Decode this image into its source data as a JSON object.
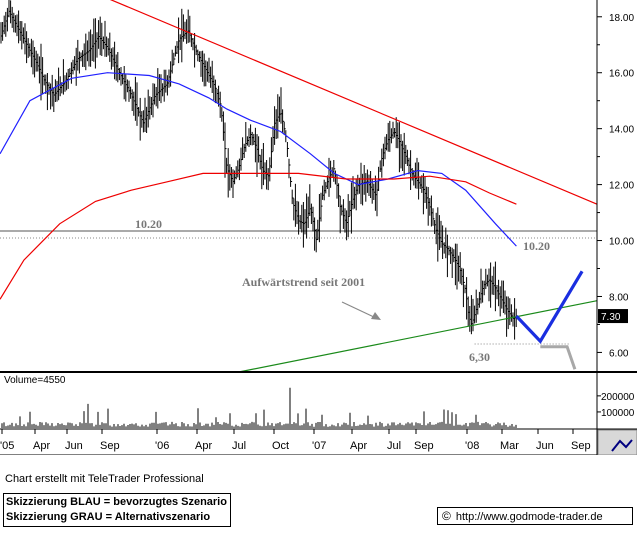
{
  "chart_data": {
    "type": "candlestick",
    "price_axis": {
      "ticks": [
        6,
        8,
        10,
        12,
        14,
        16,
        18
      ],
      "tick_labels": [
        "6.00",
        "8.00",
        "10.00",
        "12.00",
        "14.00",
        "16.00",
        "18.00"
      ],
      "range": [
        5.3,
        18.6
      ]
    },
    "volume_axis": {
      "ticks": [
        100000,
        200000
      ],
      "tick_labels": [
        "100000",
        "200000"
      ],
      "label": "Volume=4550"
    },
    "time_axis": [
      "'05",
      "Apr",
      "Jun",
      "Sep",
      "'06",
      "Apr",
      "Jul",
      "Oct",
      "'07",
      "Apr",
      "Jul",
      "Sep",
      "'08",
      "Mar",
      "Jun",
      "Sep"
    ],
    "last_price": "7.30",
    "moving_averages": [
      {
        "color": "#2020ff",
        "points": [
          [
            0,
            13.1
          ],
          [
            0.05,
            15.0
          ],
          [
            0.12,
            15.8
          ],
          [
            0.18,
            16.0
          ],
          [
            0.25,
            15.9
          ],
          [
            0.3,
            15.6
          ],
          [
            0.35,
            15.1
          ],
          [
            0.38,
            14.7
          ],
          [
            0.42,
            14.3
          ],
          [
            0.47,
            13.9
          ],
          [
            0.52,
            13.1
          ],
          [
            0.56,
            12.4
          ],
          [
            0.6,
            12.0
          ],
          [
            0.65,
            12.2
          ],
          [
            0.7,
            12.5
          ],
          [
            0.74,
            12.4
          ],
          [
            0.78,
            11.8
          ],
          [
            0.83,
            10.6
          ],
          [
            0.865,
            9.8
          ]
        ]
      },
      {
        "color": "#ee0000",
        "points": [
          [
            0,
            7.9
          ],
          [
            0.04,
            9.3
          ],
          [
            0.1,
            10.6
          ],
          [
            0.16,
            11.4
          ],
          [
            0.22,
            11.8
          ],
          [
            0.28,
            12.1
          ],
          [
            0.34,
            12.4
          ],
          [
            0.4,
            12.4
          ],
          [
            0.5,
            12.4
          ],
          [
            0.58,
            12.2
          ],
          [
            0.66,
            12.2
          ],
          [
            0.72,
            12.3
          ],
          [
            0.78,
            12.1
          ],
          [
            0.82,
            11.7
          ],
          [
            0.865,
            11.3
          ]
        ]
      }
    ],
    "annotations": {
      "resistance_level": "10.20",
      "support_level": "6,30",
      "uptrend_label": "Aufwärtstrend seit 2001"
    },
    "scenario_blue": [
      [
        0.865,
        7.3
      ],
      [
        0.905,
        6.4
      ],
      [
        0.975,
        8.9
      ]
    ],
    "scenario_grey": [
      [
        0.905,
        6.2
      ],
      [
        0.95,
        6.2
      ],
      [
        0.963,
        5.4
      ]
    ],
    "levels": [
      {
        "value": 10.2,
        "label": "10.20"
      },
      {
        "value": 6.3,
        "label": "6,30"
      }
    ],
    "trendlines": [
      {
        "name": "downtrend",
        "color": "#ee0000",
        "from": [
          0.17,
          18.75
        ],
        "to": [
          1.0,
          11.3
        ]
      },
      {
        "name": "uptrend",
        "color": "#1a8a1a",
        "from": [
          0.4,
          5.3
        ],
        "to": [
          1.0,
          7.85
        ]
      }
    ]
  },
  "footer": {
    "credit": "Chart erstellt mit TeleTrader Professional",
    "legend_blue": "Skizzierung BLAU = bevorzugtes Szenario",
    "legend_grey": "Skizzierung GRAU = Alternativszenario",
    "copyright_symbol": "©",
    "url": "http://www.godmode-trader.de"
  }
}
